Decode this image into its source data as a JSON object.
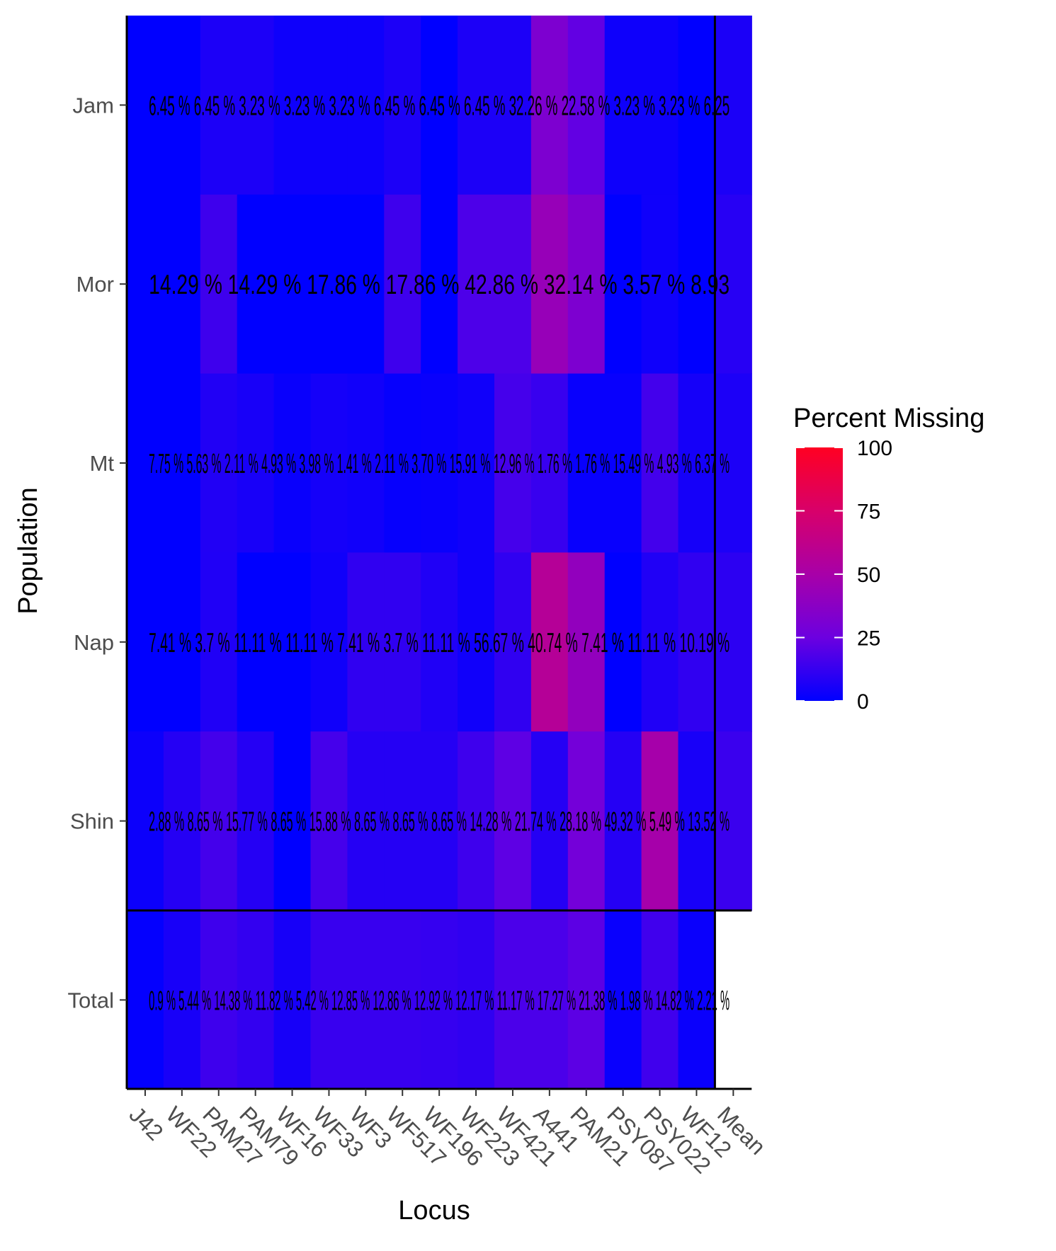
{
  "chart_data": {
    "type": "heatmap",
    "title": "",
    "xlabel": "Locus",
    "ylabel": "Population",
    "x_categories": [
      "J42",
      "WF22",
      "PAM27",
      "PAM79",
      "WF16",
      "WF33",
      "WF3",
      "WF517",
      "WF196",
      "WF223",
      "WF421",
      "A441",
      "PAM21",
      "PSY087",
      "PSY022",
      "WF12",
      "Mean"
    ],
    "y_categories": [
      "Jam",
      "Mor",
      "Mt",
      "Nap",
      "Shin",
      "Total"
    ],
    "legend": {
      "title": "Percent Missing",
      "ticks": [
        0,
        25,
        50,
        75,
        100
      ],
      "tick_labels": [
        "0",
        "25",
        "50",
        "75",
        "100"
      ],
      "range": [
        0,
        100
      ],
      "low_color": "#0000FF",
      "high_color": "#FF0000",
      "placement": "right"
    },
    "values": [
      [
        0,
        0,
        6.45,
        6.45,
        3.23,
        3.23,
        3.23,
        6.45,
        0,
        6.45,
        6.45,
        32.26,
        22.58,
        3.23,
        3.23,
        0,
        6.25
      ],
      [
        0,
        0,
        14.29,
        0,
        0,
        0,
        0,
        14.29,
        0,
        17.86,
        17.86,
        42.86,
        32.14,
        0,
        3.57,
        0,
        8.93
      ],
      [
        0,
        0,
        7.75,
        5.63,
        2.11,
        4.93,
        3.98,
        1.41,
        2.11,
        3.7,
        15.91,
        12.96,
        1.76,
        1.76,
        15.49,
        4.93,
        6.37
      ],
      [
        0,
        0,
        7.41,
        0,
        0,
        3.7,
        11.11,
        11.11,
        7.41,
        3.7,
        11.11,
        56.67,
        40.74,
        0,
        7.41,
        11.11,
        10.19
      ],
      [
        2.88,
        8.65,
        15.77,
        8.65,
        0,
        15.88,
        8.65,
        8.65,
        8.65,
        14.28,
        21.74,
        8.65,
        28.18,
        8.65,
        49.32,
        5.49,
        13.52
      ],
      [
        0.9,
        5.44,
        14.38,
        11.82,
        5.42,
        12.85,
        12.86,
        12.92,
        12.17,
        11.17,
        17.27,
        17.27,
        21.38,
        1.98,
        14.82,
        2.21,
        null
      ]
    ],
    "cell_labels": {
      "Jam": "6.45 % 6.45 % 3.23 % 3.23 % 3.23 % 6.45 % 6.45 % 6.45 % 32.26 % 22.58 % 3.23 % 3.23 % 6.25",
      "Mor": "14.29 % 14.29 % 17.86 % 17.86 % 42.86 % 32.14 % 3.57 % 8.93",
      "Mt": "7.75 % 5.63 % 2.11 % 4.93 % 3.98 % 1.41 % 2.11 % 3.70 % 15.91 % 12.96 % 1.76 % 1.76 % 15.49 % 4.93 % 6.37 %",
      "Nap": "7.41 % 3.7 % 11.11 % 11.11 % 7.41 % 3.7 % 11.11 % 56.67 % 40.74 % 7.41 % 11.11 % 10.19 %",
      "Shin": "2.88 % 8.65 % 15.77 % 8.65 % 15.88 % 8.65 % 8.65 % 8.65 % 14.28 % 21.74 % 28.18 % 49.32 % 5.49 % 13.52 %",
      "Total": "0.9 % 5.44 % 14.38 % 11.82 % 5.42 % 12.85 % 12.86 % 12.92 % 12.17 % 11.17 % 17.27 % 21.38 % 1.98 % 14.82 % 2.21 %"
    },
    "grid": false
  }
}
